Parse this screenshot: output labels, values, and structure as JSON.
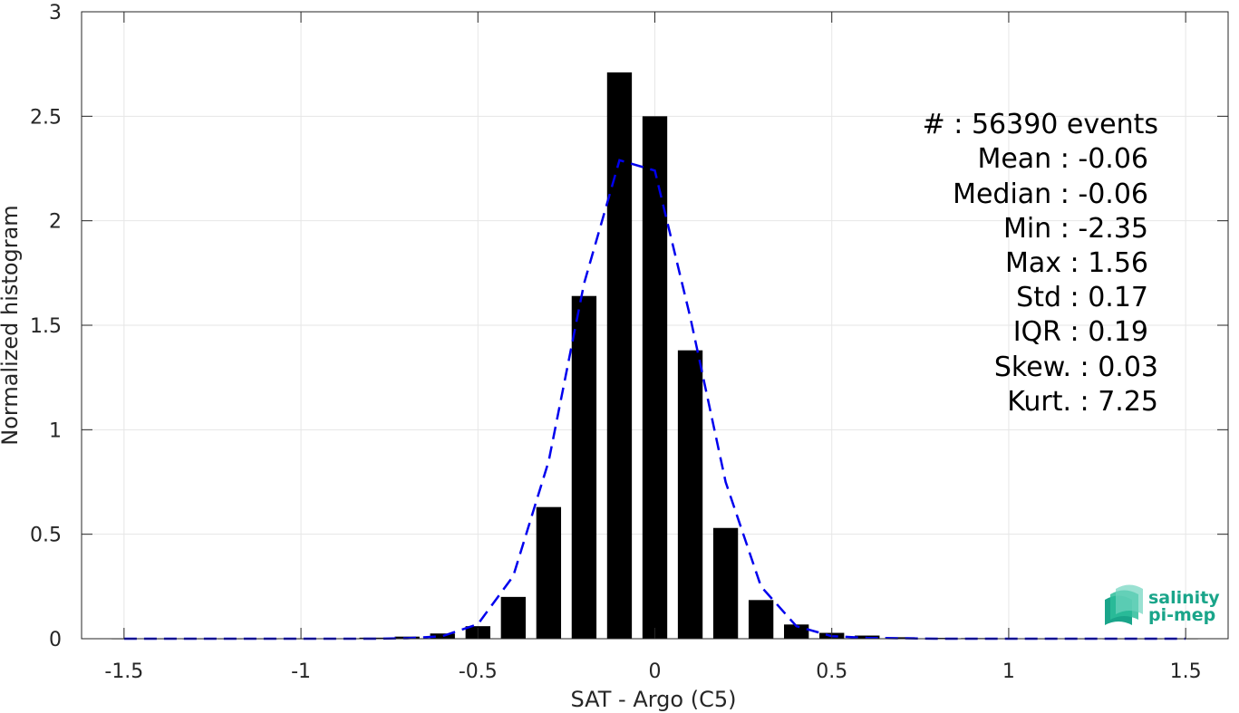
{
  "chart_data": {
    "type": "bar",
    "xlabel": "SAT - Argo (C5)",
    "ylabel": "Normalized histogram",
    "xlim": [
      -1.62,
      1.62
    ],
    "ylim": [
      0,
      3
    ],
    "xticks": [
      -1.5,
      -1,
      -0.5,
      0,
      0.5,
      1,
      1.5
    ],
    "xtick_labels": [
      "-1.5",
      "-1",
      "-0.5",
      "0",
      "0.5",
      "1",
      "1.5"
    ],
    "yticks": [
      0,
      0.5,
      1,
      1.5,
      2,
      2.5,
      3
    ],
    "ytick_labels": [
      "0",
      "0.5",
      "1",
      "1.5",
      "2",
      "2.5",
      "3"
    ],
    "grid": true,
    "bar_width": 0.07,
    "bar_color": "#000000",
    "bars": {
      "x": [
        -1.5,
        -1.4,
        -1.3,
        -1.2,
        -1.1,
        -1.0,
        -0.9,
        -0.8,
        -0.7,
        -0.6,
        -0.5,
        -0.4,
        -0.3,
        -0.2,
        -0.1,
        0.0,
        0.1,
        0.2,
        0.3,
        0.4,
        0.5,
        0.6,
        0.7,
        0.8,
        0.9,
        1.0,
        1.1,
        1.2,
        1.3,
        1.4,
        1.5
      ],
      "values": [
        0.001,
        0.001,
        0.001,
        0.001,
        0.001,
        0.001,
        0.002,
        0.005,
        0.01,
        0.025,
        0.06,
        0.2,
        0.63,
        1.64,
        2.71,
        2.5,
        1.38,
        0.53,
        0.185,
        0.068,
        0.028,
        0.015,
        0.007,
        0.004,
        0.003,
        0.002,
        0.001,
        0.001,
        0.001,
        0.001,
        0.001
      ]
    },
    "fit_curve": {
      "style": "dashed",
      "color": "#0000ee",
      "x": [
        -1.5,
        -1.4,
        -1.3,
        -1.2,
        -1.1,
        -1.0,
        -0.9,
        -0.8,
        -0.7,
        -0.6,
        -0.5,
        -0.4,
        -0.3,
        -0.2,
        -0.1,
        0.0,
        0.1,
        0.2,
        0.3,
        0.4,
        0.5,
        0.6,
        0.7,
        0.8,
        0.9,
        1.0,
        1.1,
        1.2,
        1.3,
        1.4,
        1.5
      ],
      "y": [
        0.0,
        0.0,
        0.0,
        0.0,
        0.0,
        0.0,
        0.0,
        0.0,
        0.002,
        0.012,
        0.07,
        0.3,
        0.85,
        1.7,
        2.29,
        2.24,
        1.54,
        0.75,
        0.25,
        0.06,
        0.012,
        0.004,
        0.002,
        0.0,
        0.0,
        0.0,
        0.0,
        0.0,
        0.0,
        0.0,
        0.0
      ]
    },
    "annotations": [
      "#  : 56390 events",
      "Mean : -0.06",
      "Median : -0.06",
      "Min : -2.35",
      "Max : 1.56",
      "Std : 0.17",
      "IQR : 0.19",
      "Skew. : 0.03",
      "Kurt. : 7.25"
    ]
  },
  "logo": {
    "line1": "salinity",
    "line2": "pi-mep",
    "colors": [
      "#1aa58a",
      "#2dbd9a",
      "#6fd4bf"
    ]
  }
}
